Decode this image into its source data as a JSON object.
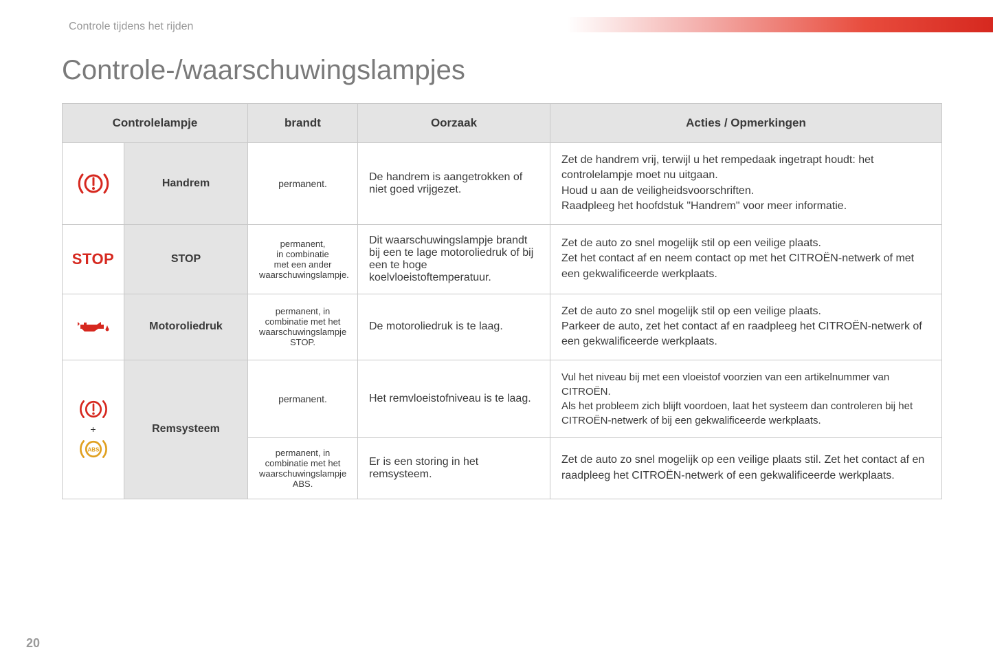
{
  "breadcrumb": "Controle tijdens het rijden",
  "pageTitle": "Controle-/waarschuwingslampjes",
  "pageNumber": "20",
  "colors": {
    "red": "#d6281f",
    "amber": "#e0a020",
    "headerBg": "#e4e4e4",
    "border": "#c8c8c8",
    "text": "#3a3a3a",
    "muted": "#9a9a9a"
  },
  "headers": {
    "col1": "Controlelampje",
    "col2": "brandt",
    "col3": "Oorzaak",
    "col4": "Acties / Opmerkingen"
  },
  "rows": {
    "handrem": {
      "name": "Handrem",
      "brandt": "permanent.",
      "oorzaak": "De handrem is aangetrokken of niet goed vrijgezet.",
      "acties": "Zet de handrem vrij, terwijl u het rempedaak ingetrapt houdt: het controlelampje moet nu uitgaan.\nHoud u aan de veiligheidsvoorschriften.\nRaadpleeg het hoofdstuk \"Handrem\" voor meer informatie."
    },
    "stop": {
      "name": "STOP",
      "iconText": "STOP",
      "brandt": "permanent,\nin combinatie\nmet een ander\nwaarschuwingslampje.",
      "oorzaak": "Dit waarschuwingslampje brandt bij een te lage motoroliedruk of bij een te hoge koelvloeistoftemperatuur.",
      "acties": "Zet de auto zo snel mogelijk stil op een veilige plaats.\nZet het contact af en neem contact op met het CITROËN-netwerk of met een gekwalificeerde werkplaats."
    },
    "olie": {
      "name": "Motoroliedruk",
      "brandt": "permanent, in combinatie met het waarschuwingslampje STOP.",
      "oorzaak": "De motoroliedruk is te laag.",
      "acties": "Zet de auto zo snel mogelijk stil op een veilige plaats.\nParkeer de auto, zet het contact af en raadpleeg het CITROËN-netwerk of een gekwalificeerde werkplaats."
    },
    "rem": {
      "name": "Remsysteem",
      "plus": "+",
      "sub1": {
        "brandt": "permanent.",
        "oorzaak": "Het remvloeistofniveau is te laag.",
        "acties": "Vul het niveau bij met een vloeistof voorzien van een artikelnummer van CITROËN.\nAls het probleem zich blijft voordoen, laat het systeem dan controleren bij het CITROËN-netwerk of bij een gekwalificeerde werkplaats."
      },
      "sub2": {
        "brandt": "permanent, in combinatie met het waarschuwingslampje ABS.",
        "oorzaak": "Er is een storing in het remsysteem.",
        "acties": "Zet de auto zo snel mogelijk op een veilige plaats stil. Zet het contact af en raadpleeg het CITROËN-netwerk of een gekwalificeerde werkplaats."
      }
    }
  }
}
